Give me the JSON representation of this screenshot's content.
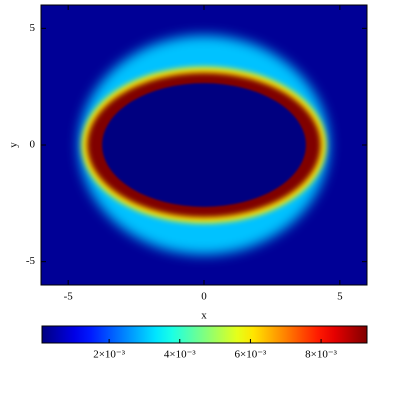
{
  "chart_data": {
    "type": "heatmap",
    "x_label": "x",
    "y_label": "y",
    "xlim": [
      -6,
      6
    ],
    "ylim": [
      -6,
      6
    ],
    "xticks": [
      -5,
      0,
      5
    ],
    "yticks": [
      -5,
      0,
      5
    ],
    "colormap": "jet",
    "clim": [
      0.0001,
      0.0093
    ],
    "cticks": [
      {
        "value": 0.002,
        "label": "2×10⁻³"
      },
      {
        "value": 0.004,
        "label": "4×10⁻³"
      },
      {
        "value": 0.006,
        "label": "6×10⁻³"
      },
      {
        "value": 0.008,
        "label": "8×10⁻³"
      }
    ],
    "background": 0.0003,
    "rings": [
      {
        "rx": 4.6,
        "ry": 4.7,
        "value": 0.003
      },
      {
        "rx": 4.5,
        "ry": 3.35,
        "value": 0.006
      },
      {
        "rx": 4.3,
        "ry": 3.1,
        "value": 0.0093
      },
      {
        "rx": 3.75,
        "ry": 2.65,
        "value": 0.0001
      }
    ]
  }
}
